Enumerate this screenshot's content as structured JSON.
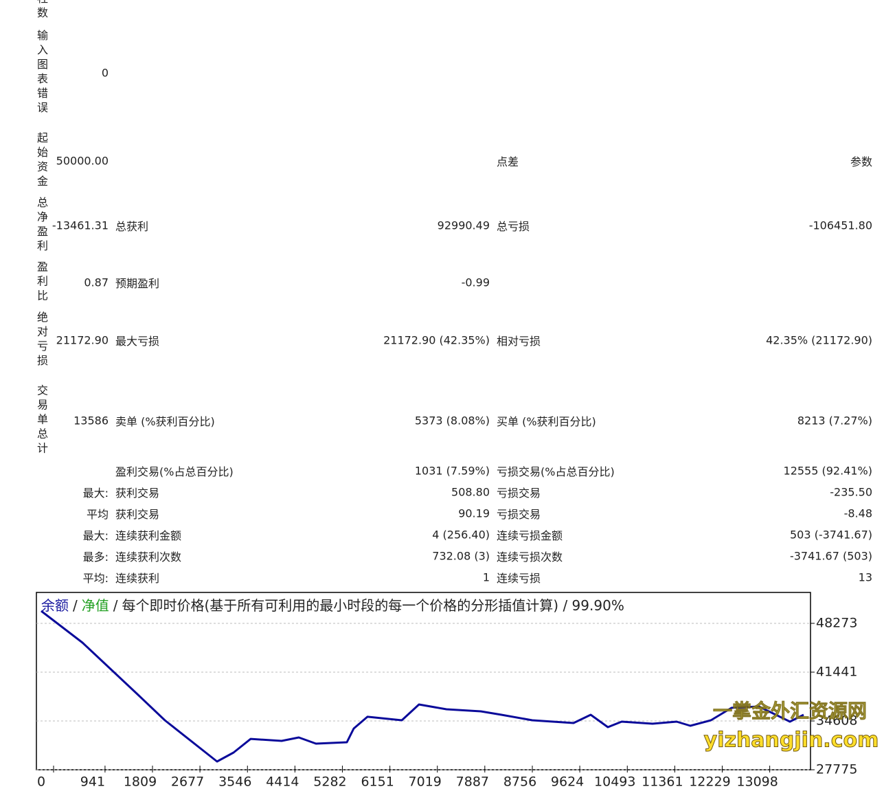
{
  "report": {
    "rows": [
      [
        "柱数",
        null,
        null,
        null,
        null,
        null
      ],
      [
        "输入图表错误",
        "0",
        null,
        null,
        null,
        null
      ],
      [
        "起始资金",
        "50000.00",
        null,
        null,
        "点差",
        "参数"
      ],
      [
        "总净盈利",
        "-13461.31",
        "总获利",
        "92990.49",
        "总亏损",
        "-106451.80"
      ],
      [
        "盈利比",
        "0.87",
        "预期盈利",
        "-0.99",
        null,
        null
      ],
      [
        "绝对亏损",
        "21172.90",
        "最大亏损",
        "21172.90 (42.35%)",
        "相对亏损",
        "42.35% (21172.90)"
      ],
      [
        "交易单总计",
        "13586",
        "卖单 (%获利百分比)",
        "5373 (8.08%)",
        "买单 (%获利百分比)",
        "8213 (7.27%)"
      ],
      [
        null,
        null,
        "盈利交易(%占总百分比)",
        "1031 (7.59%)",
        "亏损交易(%占总百分比)",
        "12555 (92.41%)"
      ],
      [
        null,
        "最大:",
        "获利交易",
        "508.80",
        "亏损交易",
        "-235.50"
      ],
      [
        null,
        "平均",
        "获利交易",
        "90.19",
        "亏损交易",
        "-8.48"
      ],
      [
        null,
        "最大:",
        "连续获利金额",
        "4 (256.40)",
        "连续亏损金额",
        "503 (-3741.67)"
      ],
      [
        null,
        "最多:",
        "连续获利次数",
        "732.08 (3)",
        "连续亏损次数",
        "-3741.67 (503)"
      ],
      [
        null,
        "平均:",
        "连续获利",
        "1",
        "连续亏损",
        "13"
      ]
    ]
  },
  "chart_data": {
    "type": "line",
    "legend": [
      {
        "name": "余额",
        "color": "#1a1aa0"
      },
      {
        "name": "净值",
        "color": "#22a022"
      }
    ],
    "separator": "/",
    "title": "每个即时价格(基于所有可利用的最小时段的每一个价格的分形插值计算) / 99.90%",
    "series": [
      {
        "name": "余额",
        "color": "#0a0a9a",
        "x": [
          0,
          754,
          1759,
          2261,
          3216,
          3518,
          3832,
          4397,
          4711,
          5025,
          5590,
          5716,
          5967,
          6595,
          6910,
          7412,
          8040,
          8417,
          8982,
          9736,
          10050,
          10364,
          10616,
          11181,
          11621,
          11872,
          12249,
          12626,
          13128,
          13693,
          13945
        ],
        "values": [
          50000,
          45580,
          38360,
          34700,
          28930,
          30180,
          32100,
          31820,
          32300,
          31430,
          31620,
          33550,
          35190,
          34700,
          36920,
          36240,
          35955,
          35470,
          34700,
          34320,
          35470,
          33740,
          34510,
          34220,
          34510,
          33930,
          34700,
          36440,
          36630,
          34510,
          35470
        ]
      }
    ],
    "xlim": [
      0,
      14070
    ],
    "ylim": [
      27775,
      52600
    ],
    "xticks": [
      0,
      941,
      1809,
      2677,
      3546,
      4414,
      5282,
      6151,
      7019,
      7887,
      8756,
      9624,
      10493,
      11361,
      12229,
      13098
    ],
    "yticks": [
      27775,
      34608,
      41441,
      48273
    ],
    "grid": true,
    "watermark": [
      "一掌金外汇资源网",
      "yizhangjin.com"
    ]
  }
}
